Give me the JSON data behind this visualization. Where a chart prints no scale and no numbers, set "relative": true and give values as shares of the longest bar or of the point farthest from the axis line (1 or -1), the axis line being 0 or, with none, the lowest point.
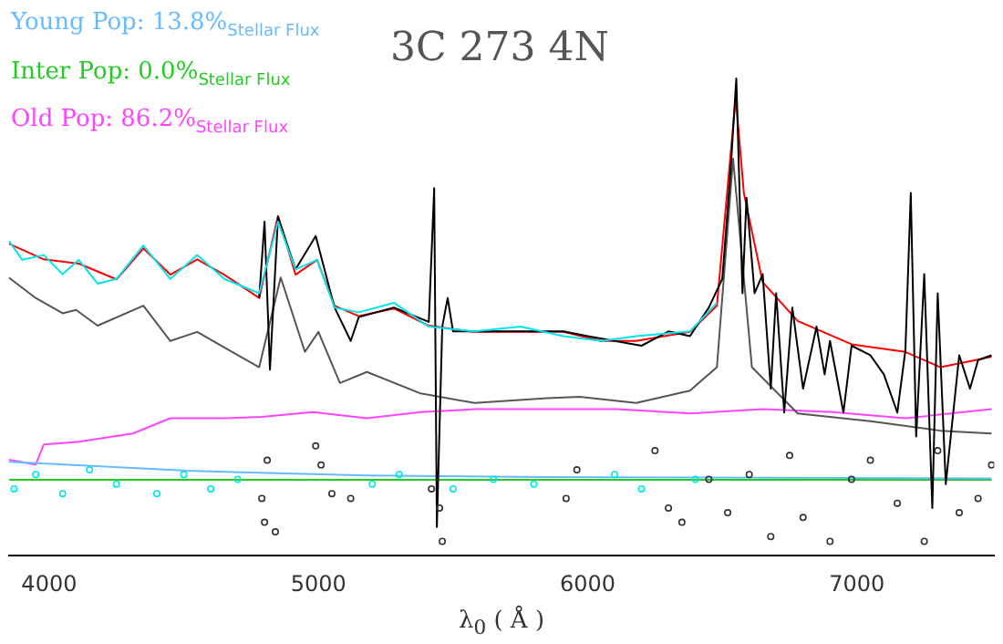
{
  "chart_data": {
    "type": "line",
    "title": "3C 273 4N",
    "xlabel": "λ$_{0}$ ( Å )",
    "relative": true,
    "legend": "top left",
    "grid": false,
    "xlim": [
      3850,
      7510
    ],
    "xticks": [
      4000,
      5000,
      6000,
      7000
    ],
    "series": [
      {
        "type": "scatter",
        "color": "#00e5ee",
        "x": [
          3870,
          3950,
          4050,
          4150,
          4250,
          4400,
          4500,
          4600,
          4700,
          5200,
          5300,
          5500,
          5650,
          5800,
          6100,
          6200,
          6400
        ],
        "values": [
          0.14,
          0.17,
          0.13,
          0.18,
          0.15,
          0.13,
          0.17,
          0.14,
          0.16,
          0.15,
          0.17,
          0.14,
          0.16,
          0.15,
          0.17,
          0.14,
          0.16
        ]
      },
      {
        "type": "scatter",
        "color": "#333333",
        "x": [
          4790,
          4800,
          4810,
          4840,
          4990,
          5010,
          5050,
          5120,
          5420,
          5450,
          5460,
          5920,
          5960,
          6250,
          6300,
          6350,
          6450,
          6520,
          6600,
          6680,
          6750,
          6800,
          6900,
          6980,
          7050,
          7150,
          7250,
          7300,
          7380,
          7450,
          7500
        ],
        "values": [
          0.12,
          0.07,
          0.2,
          0.05,
          0.23,
          0.19,
          0.13,
          0.12,
          0.14,
          0.1,
          0.03,
          0.12,
          0.18,
          0.22,
          0.1,
          0.07,
          0.16,
          0.09,
          0.17,
          0.04,
          0.21,
          0.08,
          0.03,
          0.16,
          0.2,
          0.11,
          0.03,
          0.22,
          0.09,
          0.12,
          0.19
        ]
      },
      {
        "type": "line",
        "color": "#00e5ee",
        "x": [
          3850,
          3900,
          3980,
          4050,
          4110,
          4180,
          4250,
          4350,
          4450,
          4550,
          4650,
          4780,
          4850,
          4915,
          4995,
          5060,
          5150,
          5280,
          5410,
          5580,
          5750,
          5910,
          6050,
          6180,
          6380,
          6480
        ],
        "values": [
          0.66,
          0.62,
          0.63,
          0.59,
          0.62,
          0.57,
          0.58,
          0.65,
          0.58,
          0.63,
          0.58,
          0.55,
          0.7,
          0.6,
          0.62,
          0.52,
          0.51,
          0.53,
          0.48,
          0.47,
          0.48,
          0.46,
          0.45,
          0.46,
          0.47,
          0.53
        ]
      },
      {
        "type": "line",
        "color": "#000000",
        "x": [
          4780,
          4800,
          4820,
          4850,
          4915,
          4990,
          5060,
          5120,
          5150,
          5280,
          5410,
          5430,
          5440,
          5460,
          5480,
          5500,
          5750,
          5910,
          6000,
          6100,
          6200,
          6300,
          6380,
          6450,
          6500,
          6530,
          6552,
          6575,
          6590,
          6620,
          6650,
          6680,
          6700,
          6730,
          6760,
          6800,
          6850,
          6880,
          6900,
          6950,
          6980,
          7050,
          7100,
          7150,
          7180,
          7200,
          7220,
          7250,
          7280,
          7300,
          7330,
          7380,
          7420,
          7450,
          7500
        ],
        "values": [
          0.54,
          0.7,
          0.39,
          0.71,
          0.6,
          0.67,
          0.52,
          0.45,
          0.5,
          0.52,
          0.49,
          0.77,
          0.06,
          0.48,
          0.54,
          0.47,
          0.47,
          0.47,
          0.46,
          0.45,
          0.44,
          0.47,
          0.46,
          0.52,
          0.58,
          0.8,
          1,
          0.55,
          0.75,
          0.55,
          0.59,
          0.35,
          0.55,
          0.3,
          0.52,
          0.35,
          0.48,
          0.38,
          0.45,
          0.3,
          0.44,
          0.42,
          0.38,
          0.3,
          0.43,
          0.76,
          0.25,
          0.59,
          0.1,
          0.55,
          0.15,
          0.42,
          0.35,
          0.41,
          0.42
        ]
      },
      {
        "type": "line",
        "color": "#ff0000",
        "x": [
          3850,
          3980,
          4110,
          4250,
          4350,
          4450,
          4550,
          4650,
          4780,
          4850,
          4915,
          4995,
          5060,
          5150,
          5280,
          5410,
          5580,
          5750,
          5910,
          6050,
          6180,
          6380,
          6480,
          6550,
          6580,
          6650,
          6780,
          6980,
          7180,
          7310,
          7450,
          7500
        ],
        "values": [
          0.654,
          0.621,
          0.612,
          0.579,
          0.644,
          0.589,
          0.621,
          0.589,
          0.54,
          0.712,
          0.589,
          0.62,
          0.524,
          0.502,
          0.518,
          0.482,
          0.469,
          0.469,
          0.469,
          0.45,
          0.45,
          0.469,
          0.524,
          0.961,
          0.76,
          0.573,
          0.492,
          0.443,
          0.427,
          0.395,
          0.411,
          0.417
        ]
      },
      {
        "type": "line",
        "color": "#555555",
        "x": [
          3850,
          3950,
          4050,
          4100,
          4180,
          4350,
          4450,
          4550,
          4680,
          4780,
          4860,
          4950,
          5000,
          5080,
          5180,
          5380,
          5580,
          5850,
          5970,
          6180,
          6380,
          6480,
          6540,
          6610,
          6780,
          7050,
          7310,
          7500
        ],
        "values": [
          0.583,
          0.54,
          0.508,
          0.515,
          0.482,
          0.524,
          0.45,
          0.469,
          0.427,
          0.395,
          0.583,
          0.427,
          0.469,
          0.362,
          0.385,
          0.34,
          0.32,
          0.33,
          0.333,
          0.32,
          0.346,
          0.395,
          0.832,
          0.395,
          0.298,
          0.282,
          0.262,
          0.256
        ]
      },
      {
        "name": "Young Pop: 13.8%$_{Stellar Flux}$",
        "type": "line",
        "color": "#66bbff",
        "x": [
          3850,
          4510,
          5180,
          5850,
          7500
        ],
        "values": [
          0.197,
          0.178,
          0.168,
          0.165,
          0.162
        ]
      },
      {
        "name": "Inter Pop: 0.0%$_{Stellar Flux}$",
        "type": "line",
        "color": "#22cc22",
        "x": [
          3850,
          7500
        ],
        "values": [
          0.159,
          0.159
        ]
      },
      {
        "name": "Old Pop: 86.2%$_{Stellar Flux}$",
        "type": "line",
        "color": "#ff44ff",
        "x": [
          3850,
          3950,
          3980,
          4110,
          4310,
          4450,
          4650,
          4790,
          4980,
          5180,
          5380,
          5580,
          5850,
          6110,
          6380,
          6650,
          6910,
          7180,
          7500
        ],
        "values": [
          0.201,
          0.191,
          0.233,
          0.239,
          0.256,
          0.288,
          0.288,
          0.291,
          0.301,
          0.288,
          0.301,
          0.307,
          0.307,
          0.307,
          0.298,
          0.307,
          0.301,
          0.288,
          0.307
        ]
      }
    ]
  }
}
